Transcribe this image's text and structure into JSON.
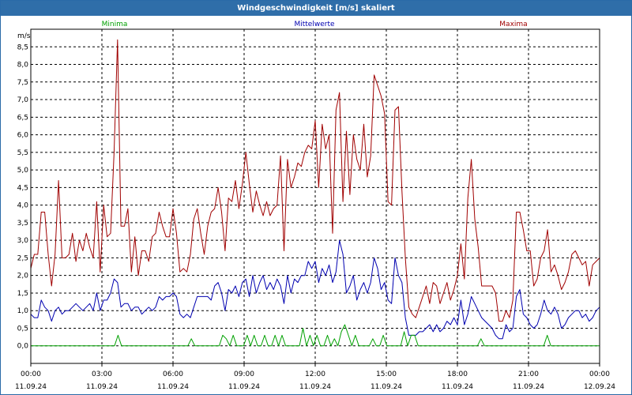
{
  "window": {
    "title": "Windgeschwindigkeit [m/s] skaliert"
  },
  "colors": {
    "minima": "#00a000",
    "mittel": "#0000b0",
    "maxima": "#a00000",
    "grid": "#000000",
    "title_bg": "#2f6ea9"
  },
  "chart_data": {
    "type": "line",
    "title": "Windgeschwindigkeit [m/s] skaliert",
    "ylabel": "m/s",
    "xlabel": "",
    "ylim": [
      -0.5,
      9.0
    ],
    "xlim": [
      0,
      24
    ],
    "grid": true,
    "legend": [
      "Minima",
      "Mittelwerte",
      "Maxima"
    ],
    "y_ticks": [
      "8,5",
      "8,0",
      "7,5",
      "7,0",
      "6,5",
      "6,0",
      "5,5",
      "5,0",
      "4,5",
      "4,0",
      "3,5",
      "3,0",
      "2,5",
      "2,0",
      "1,5",
      "1,0",
      "0,5",
      "0,0"
    ],
    "y_tick_values": [
      8.5,
      8.0,
      7.5,
      7.0,
      6.5,
      6.0,
      5.5,
      5.0,
      4.5,
      4.0,
      3.5,
      3.0,
      2.5,
      2.0,
      1.5,
      1.0,
      0.5,
      0.0
    ],
    "x_ticks": [
      {
        "time": "00:00",
        "date": "11.09.24",
        "hour": 0
      },
      {
        "time": "03:00",
        "date": "11.09.24",
        "hour": 3
      },
      {
        "time": "06:00",
        "date": "11.09.24",
        "hour": 6
      },
      {
        "time": "09:00",
        "date": "11.09.24",
        "hour": 9
      },
      {
        "time": "12:00",
        "date": "11.09.24",
        "hour": 12
      },
      {
        "time": "15:00",
        "date": "11.09.24",
        "hour": 15
      },
      {
        "time": "18:00",
        "date": "11.09.24",
        "hour": 18
      },
      {
        "time": "21:00",
        "date": "11.09.24",
        "hour": 21
      },
      {
        "time": "00:00",
        "date": "12.09.24",
        "hour": 24
      }
    ],
    "series": [
      {
        "name": "Maxima",
        "color": "#a00000",
        "values": [
          2.2,
          2.6,
          2.6,
          3.8,
          3.8,
          2.6,
          1.7,
          2.6,
          4.7,
          2.5,
          2.5,
          2.6,
          3.2,
          2.4,
          3.0,
          2.7,
          3.2,
          2.8,
          2.5,
          4.1,
          2.1,
          4.0,
          3.1,
          3.2,
          5.5,
          8.7,
          3.4,
          3.4,
          3.9,
          2.1,
          3.1,
          2.0,
          2.7,
          2.7,
          2.4,
          3.1,
          3.2,
          3.8,
          3.4,
          3.1,
          3.1,
          3.9,
          3.2,
          2.1,
          2.2,
          2.1,
          2.6,
          3.6,
          3.9,
          3.2,
          2.6,
          3.4,
          3.8,
          3.9,
          4.5,
          3.8,
          2.7,
          4.2,
          4.1,
          4.7,
          3.9,
          4.6,
          5.5,
          4.6,
          3.8,
          4.4,
          4.0,
          3.7,
          4.1,
          3.7,
          3.9,
          4.0,
          5.4,
          2.7,
          5.3,
          4.5,
          4.8,
          5.2,
          5.1,
          5.5,
          5.7,
          5.6,
          6.4,
          4.5,
          6.3,
          5.6,
          6.0,
          3.2,
          6.7,
          7.2,
          4.1,
          6.1,
          4.3,
          6.0,
          5.3,
          5.0,
          6.3,
          4.8,
          5.4,
          7.7,
          7.4,
          7.1,
          6.6,
          4.1,
          4.0,
          6.7,
          6.8,
          4.4,
          2.5,
          1.1,
          0.9,
          0.8,
          1.1,
          1.4,
          1.7,
          1.2,
          1.8,
          1.7,
          1.2,
          1.5,
          1.8,
          1.3,
          1.6,
          2.0,
          2.9,
          1.9,
          4.2,
          5.3,
          3.6,
          2.8,
          1.7,
          1.7,
          1.7,
          1.7,
          1.5,
          0.7,
          0.7,
          1.0,
          0.8,
          1.3,
          3.8,
          3.8,
          3.3,
          2.7,
          2.7,
          1.7,
          1.9,
          2.5,
          2.7,
          3.3,
          2.1,
          2.3,
          2.0,
          1.6,
          1.8,
          2.1,
          2.6,
          2.7,
          2.5,
          2.3,
          2.4,
          1.7,
          2.3,
          2.4,
          2.5
        ]
      },
      {
        "name": "Mittelwerte",
        "color": "#0000b0",
        "values": [
          0.9,
          0.8,
          0.8,
          1.3,
          1.1,
          1.0,
          0.7,
          1.0,
          1.1,
          0.9,
          1.0,
          1.0,
          1.1,
          1.2,
          1.1,
          1.0,
          1.1,
          1.2,
          1.0,
          1.5,
          1.0,
          1.3,
          1.3,
          1.5,
          1.9,
          1.8,
          1.1,
          1.2,
          1.2,
          1.0,
          1.1,
          1.1,
          0.9,
          1.0,
          1.1,
          1.0,
          1.1,
          1.4,
          1.3,
          1.4,
          1.4,
          1.5,
          1.4,
          0.9,
          0.8,
          0.9,
          0.8,
          1.1,
          1.4,
          1.4,
          1.4,
          1.4,
          1.3,
          1.7,
          1.8,
          1.5,
          1.0,
          1.6,
          1.5,
          1.7,
          1.4,
          1.8,
          1.9,
          1.4,
          2.0,
          1.5,
          1.8,
          2.0,
          1.6,
          1.8,
          1.6,
          1.9,
          1.7,
          1.2,
          2.0,
          1.5,
          1.9,
          1.8,
          2.0,
          2.0,
          2.4,
          2.2,
          2.4,
          1.8,
          2.2,
          2.0,
          2.3,
          1.8,
          2.1,
          3.0,
          2.6,
          1.5,
          1.7,
          2.0,
          1.3,
          1.6,
          1.8,
          1.5,
          1.8,
          2.5,
          2.2,
          1.6,
          1.8,
          1.3,
          1.2,
          2.5,
          2.0,
          1.8,
          0.8,
          0.3,
          0.3,
          0.3,
          0.4,
          0.4,
          0.5,
          0.6,
          0.4,
          0.6,
          0.4,
          0.5,
          0.7,
          0.6,
          0.8,
          0.6,
          1.3,
          0.6,
          0.9,
          1.4,
          1.2,
          1.0,
          0.8,
          0.7,
          0.6,
          0.5,
          0.3,
          0.2,
          0.2,
          0.6,
          0.4,
          0.5,
          1.4,
          1.6,
          0.9,
          0.8,
          0.6,
          0.5,
          0.6,
          0.9,
          1.3,
          1.0,
          0.9,
          1.1,
          0.9,
          0.5,
          0.6,
          0.8,
          0.9,
          1.0,
          1.0,
          0.8,
          0.9,
          0.7,
          0.8,
          1.0,
          1.1
        ]
      },
      {
        "name": "Minima",
        "color": "#00a000",
        "values": [
          0.0,
          0.0,
          0.0,
          0.0,
          0.0,
          0.0,
          0.0,
          0.0,
          0.0,
          0.0,
          0.0,
          0.0,
          0.0,
          0.0,
          0.0,
          0.0,
          0.0,
          0.0,
          0.0,
          0.0,
          0.0,
          0.0,
          0.0,
          0.0,
          0.0,
          0.3,
          0.0,
          0.0,
          0.0,
          0.0,
          0.0,
          0.0,
          0.0,
          0.0,
          0.0,
          0.0,
          0.0,
          0.0,
          0.0,
          0.0,
          0.0,
          0.0,
          0.0,
          0.0,
          0.0,
          0.0,
          0.2,
          0.0,
          0.0,
          0.0,
          0.0,
          0.0,
          0.0,
          0.0,
          0.0,
          0.3,
          0.2,
          0.0,
          0.3,
          0.0,
          0.0,
          0.0,
          0.3,
          0.0,
          0.3,
          0.0,
          0.0,
          0.3,
          0.0,
          0.0,
          0.3,
          0.0,
          0.3,
          0.0,
          0.0,
          0.0,
          0.0,
          0.0,
          0.5,
          0.0,
          0.3,
          0.0,
          0.3,
          0.0,
          0.0,
          0.3,
          0.0,
          0.2,
          0.0,
          0.4,
          0.6,
          0.3,
          0.0,
          0.3,
          0.0,
          0.0,
          0.0,
          0.0,
          0.2,
          0.0,
          0.0,
          0.3,
          0.0,
          0.0,
          0.0,
          0.0,
          0.0,
          0.4,
          0.0,
          0.3,
          0.3,
          0.0,
          0.0,
          0.0,
          0.0,
          0.0,
          0.0,
          0.0,
          0.0,
          0.0,
          0.0,
          0.0,
          0.0,
          0.0,
          0.0,
          0.0,
          0.0,
          0.0,
          0.0,
          0.2,
          0.0,
          0.0,
          0.0,
          0.0,
          0.0,
          0.0,
          0.0,
          0.0,
          0.0,
          0.0,
          0.0,
          0.0,
          0.0,
          0.0,
          0.0,
          0.0,
          0.0,
          0.0,
          0.3,
          0.0,
          0.0,
          0.0,
          0.0,
          0.0,
          0.0,
          0.0,
          0.0,
          0.0,
          0.0,
          0.0,
          0.0,
          0.0,
          0.0,
          0.0
        ]
      }
    ]
  }
}
